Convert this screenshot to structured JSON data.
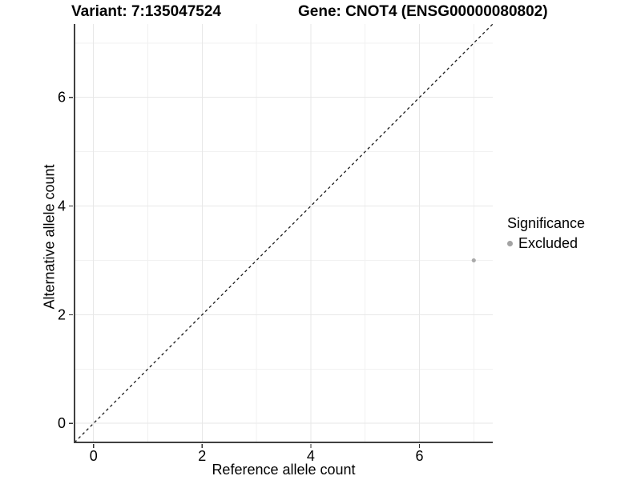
{
  "chart_data": {
    "type": "scatter",
    "titles": {
      "left": "Variant: 7:135047524",
      "right": "Gene: CNOT4 (ENSG00000080802)"
    },
    "xlabel": "Reference allele count",
    "ylabel": "Alternative allele count",
    "xlim": [
      -0.35,
      7.35
    ],
    "ylim": [
      -0.35,
      7.35
    ],
    "xticks": [
      0,
      2,
      4,
      6
    ],
    "yticks": [
      0,
      2,
      4,
      6
    ],
    "grid_major": [
      0,
      2,
      4,
      6
    ],
    "grid_minor": [
      1,
      3,
      5,
      7
    ],
    "grid_on": true,
    "abline": {
      "slope": 1,
      "intercept": 0,
      "linetype": "dashed",
      "color": "#1a1a1a"
    },
    "series": [
      {
        "name": "Excluded",
        "points": [
          {
            "x": 7,
            "y": 3
          }
        ],
        "color": "#aaaaaa"
      }
    ],
    "legend": {
      "title": "Significance",
      "position": "right",
      "items": [
        {
          "label": "Excluded",
          "color": "#a3a3a3"
        }
      ]
    },
    "colors": {
      "background": "#ffffff",
      "grid_major": "#e7e7e7",
      "grid_minor": "#f1f1f1",
      "axis_line": "#404040",
      "tick": "#333333",
      "text": "#000000"
    }
  }
}
